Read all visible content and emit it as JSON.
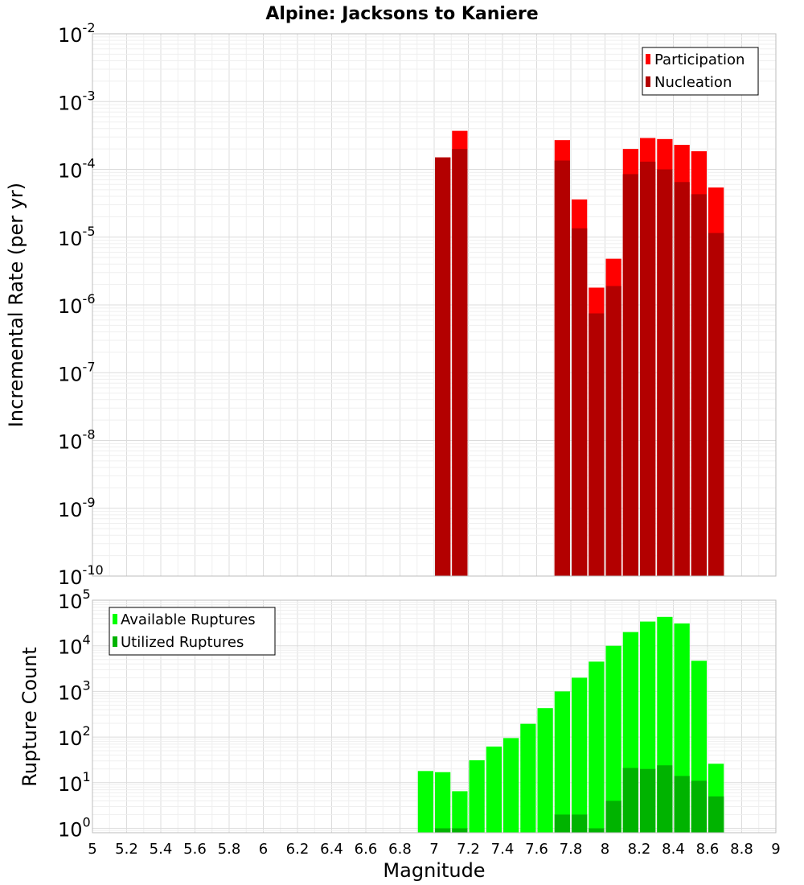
{
  "title": "Alpine: Jacksons to Kaniere",
  "colors": {
    "participation": "#ff0000",
    "nucleation": "#b30000",
    "available": "#00ff00",
    "utilized": "#00b300"
  },
  "chart_data": [
    {
      "type": "bar",
      "title": "Alpine: Jacksons to Kaniere",
      "ylabel": "Incremental Rate (per yr)",
      "xlabel": "",
      "yscale": "log",
      "ylim": [
        1e-10,
        0.01
      ],
      "xlim": [
        5,
        9
      ],
      "grid": true,
      "legend_position": "top-right",
      "bin_width": 0.1,
      "x": [
        7.05,
        7.15,
        7.75,
        7.85,
        7.95,
        8.05,
        8.15,
        8.25,
        8.35,
        8.45,
        8.55,
        8.65
      ],
      "series": [
        {
          "name": "Participation",
          "color": "#ff0000",
          "values": [
            0.00015,
            0.00037,
            0.00027,
            3.6e-05,
            1.8e-06,
            4.8e-06,
            0.0002,
            0.00029,
            0.00028,
            0.00023,
            0.000185,
            5.4e-05
          ]
        },
        {
          "name": "Nucleation",
          "color": "#b30000",
          "values": [
            0.00015,
            0.0002,
            0.000135,
            1.35e-05,
            7.5e-07,
            1.9e-06,
            8.5e-05,
            0.00013,
            0.0001,
            6.5e-05,
            4.3e-05,
            1.15e-05
          ]
        }
      ]
    },
    {
      "type": "bar",
      "title": "",
      "ylabel": "Rupture Count",
      "xlabel": "Magnitude",
      "yscale": "log",
      "ylim": [
        0.8,
        100000.0
      ],
      "xlim": [
        5,
        9
      ],
      "grid": true,
      "legend_position": "top-left",
      "bin_width": 0.1,
      "x": [
        6.95,
        7.05,
        7.15,
        7.25,
        7.35,
        7.45,
        7.55,
        7.65,
        7.75,
        7.85,
        7.95,
        8.05,
        8.15,
        8.25,
        8.35,
        8.45,
        8.55,
        8.65
      ],
      "series": [
        {
          "name": "Available Ruptures",
          "color": "#00ff00",
          "values": [
            18,
            17,
            6.5,
            31,
            62,
            95,
            195,
            430,
            1000,
            2000,
            4500,
            10000,
            20000,
            34000,
            43000,
            31000,
            4700,
            26
          ]
        },
        {
          "name": "Utilized Ruptures",
          "color": "#00b300",
          "values": [
            0,
            1,
            1,
            0,
            0,
            0,
            0,
            0,
            2,
            2,
            1,
            4,
            21,
            20,
            24,
            14,
            11,
            5
          ]
        }
      ],
      "x_ticks": [
        "5",
        "5.2",
        "5.4",
        "5.6",
        "5.8",
        "6",
        "6.2",
        "6.4",
        "6.6",
        "6.8",
        "7",
        "7.2",
        "7.4",
        "7.6",
        "7.8",
        "8",
        "8.2",
        "8.4",
        "8.6",
        "8.8",
        "9"
      ]
    }
  ],
  "top_y_ticks": [
    {
      "base": "10",
      "exp": "-2"
    },
    {
      "base": "10",
      "exp": "-3"
    },
    {
      "base": "10",
      "exp": "-4"
    },
    {
      "base": "10",
      "exp": "-5"
    },
    {
      "base": "10",
      "exp": "-6"
    },
    {
      "base": "10",
      "exp": "-7"
    },
    {
      "base": "10",
      "exp": "-8"
    },
    {
      "base": "10",
      "exp": "-9"
    },
    {
      "base": "10",
      "exp": "-10"
    }
  ],
  "bottom_y_ticks": [
    {
      "base": "10",
      "exp": "5"
    },
    {
      "base": "10",
      "exp": "4"
    },
    {
      "base": "10",
      "exp": "3"
    },
    {
      "base": "10",
      "exp": "2"
    },
    {
      "base": "10",
      "exp": "1"
    },
    {
      "base": "10",
      "exp": "0"
    }
  ]
}
